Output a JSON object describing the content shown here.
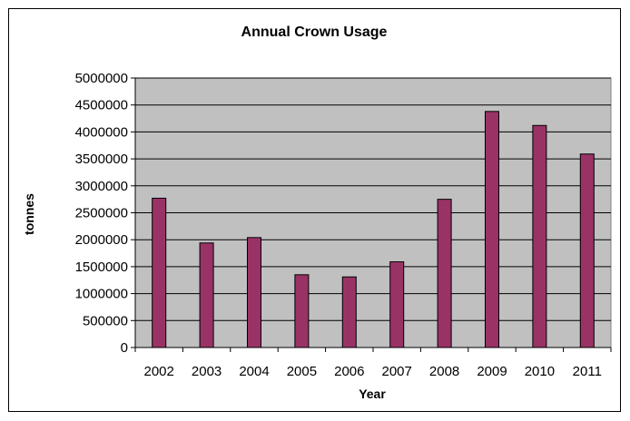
{
  "chart_data": {
    "type": "bar",
    "title": "Annual Crown Usage",
    "xlabel": "Year",
    "ylabel": "tonnes",
    "categories": [
      "2002",
      "2003",
      "2004",
      "2005",
      "2006",
      "2007",
      "2008",
      "2009",
      "2010",
      "2011"
    ],
    "values": [
      2770000,
      1940000,
      2040000,
      1350000,
      1310000,
      1590000,
      2750000,
      4380000,
      4120000,
      3590000
    ],
    "ylim": [
      0,
      5000000
    ],
    "yticks": [
      "0",
      "500000",
      "1000000",
      "1500000",
      "2000000",
      "2500000",
      "3000000",
      "3500000",
      "4000000",
      "4500000",
      "5000000"
    ],
    "grid": true,
    "legend": "none",
    "colors": {
      "bar_fill": "#993366",
      "bar_stroke": "#000000",
      "plot_background": "#c0c0c0",
      "gridline": "#000000"
    }
  }
}
